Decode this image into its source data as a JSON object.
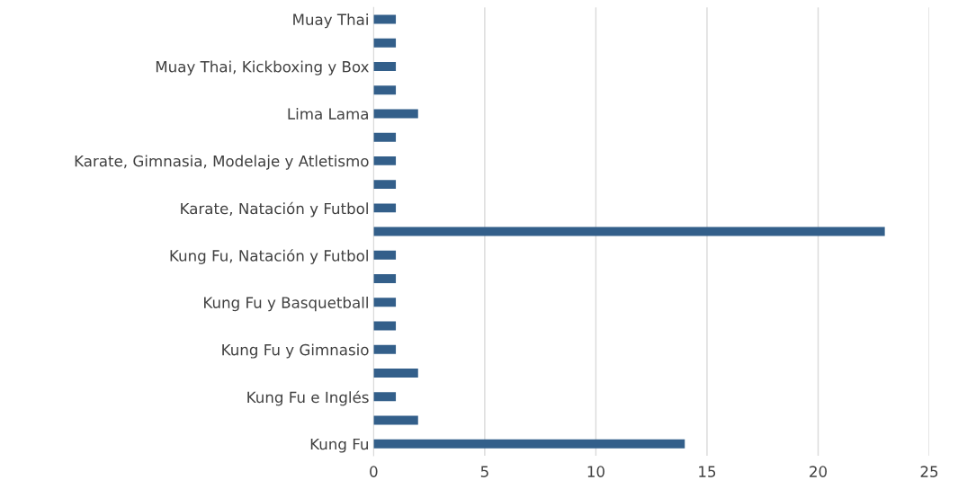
{
  "chart_data": {
    "type": "bar",
    "orientation": "horizontal",
    "categories": [
      "Muay Thai",
      null,
      "Muay Thai, Kickboxing y Box",
      null,
      "Lima Lama",
      null,
      "Karate, Gimnasia, Modelaje y Atletismo",
      null,
      "Karate, Natación y Futbol",
      null,
      "Kung Fu, Natación y Futbol",
      null,
      "Kung Fu y Basquetball",
      null,
      "Kung Fu y Gimnasio",
      null,
      "Kung Fu e Inglés",
      null,
      "Kung Fu"
    ],
    "values": [
      1,
      1,
      1,
      1,
      2,
      1,
      1,
      1,
      1,
      23,
      1,
      1,
      1,
      1,
      1,
      2,
      1,
      2,
      14
    ],
    "color": "#335f8a",
    "xlim": [
      0,
      25
    ],
    "xticks": [
      0,
      5,
      10,
      15,
      20,
      25
    ],
    "grid": "x",
    "legend": false
  }
}
